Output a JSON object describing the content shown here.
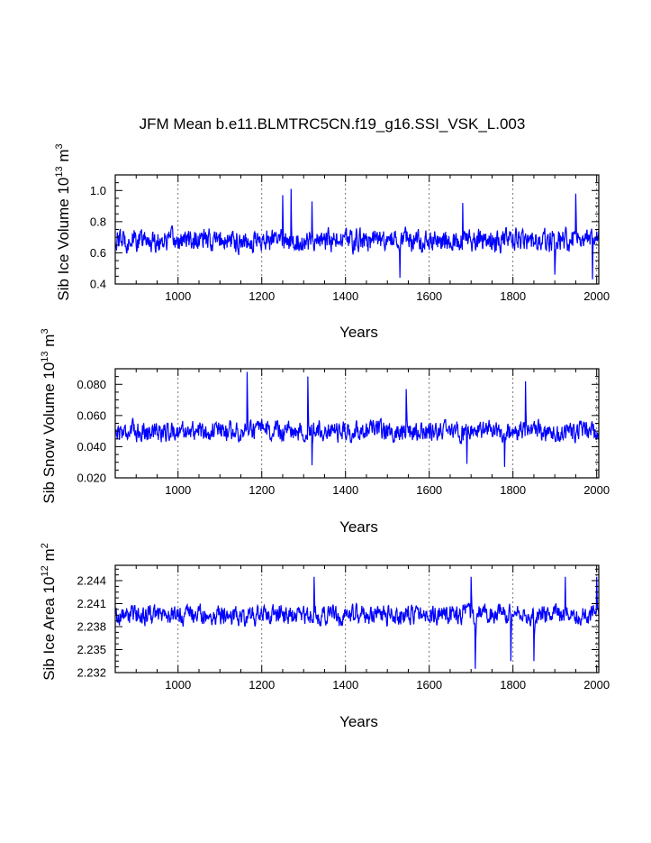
{
  "chart_data": {
    "title": "JFM Mean b.e11.BLMTRC5CN.f19_g16.SSI_VSK_L.003",
    "line_color": "#0000ff",
    "panels": [
      {
        "type": "line",
        "ylabel": "Sib Ice Volume",
        "yunit_base": "10",
        "yunit_exp": "13",
        "yunit_tail": "m",
        "yunit_tail_exp": "3",
        "xlabel": "Years",
        "xlim": [
          850,
          2005
        ],
        "ylim": [
          0.4,
          1.1
        ],
        "xticks": [
          1000,
          1200,
          1400,
          1600,
          1800,
          2000
        ],
        "xtick_labels": [
          "1000",
          "1200",
          "1400",
          "1600",
          "1800",
          "2000"
        ],
        "yticks": [
          0.4,
          0.6,
          0.8,
          1.0
        ],
        "ytick_labels": [
          "0.4",
          "0.6",
          "0.8",
          "1.0"
        ],
        "baseline": 0.68,
        "noise": 0.09,
        "highlights": [
          [
            1250,
            0.97
          ],
          [
            1270,
            1.01
          ],
          [
            1320,
            0.93
          ],
          [
            1680,
            0.92
          ],
          [
            1950,
            0.98
          ]
        ],
        "lows": [
          [
            1530,
            0.44
          ],
          [
            1900,
            0.46
          ],
          [
            1990,
            0.43
          ]
        ]
      },
      {
        "type": "line",
        "ylabel": "Sib Snow Volume",
        "yunit_base": "10",
        "yunit_exp": "13",
        "yunit_tail": "m",
        "yunit_tail_exp": "3",
        "xlabel": "Years",
        "xlim": [
          850,
          2005
        ],
        "ylim": [
          0.02,
          0.09
        ],
        "xticks": [
          1000,
          1200,
          1400,
          1600,
          1800,
          2000
        ],
        "xtick_labels": [
          "1000",
          "1200",
          "1400",
          "1600",
          "1800",
          "2000"
        ],
        "yticks": [
          0.02,
          0.04,
          0.06,
          0.08
        ],
        "ytick_labels": [
          "0.020",
          "0.040",
          "0.060",
          "0.080"
        ],
        "baseline": 0.05,
        "noise": 0.008,
        "highlights": [
          [
            1165,
            0.088
          ],
          [
            1310,
            0.085
          ],
          [
            1545,
            0.077
          ],
          [
            1830,
            0.082
          ]
        ],
        "lows": [
          [
            1320,
            0.028
          ],
          [
            1690,
            0.029
          ],
          [
            1780,
            0.027
          ]
        ]
      },
      {
        "type": "line",
        "ylabel": "Sib Ice Area",
        "yunit_base": "10",
        "yunit_exp": "12",
        "yunit_tail": "m",
        "yunit_tail_exp": "2",
        "xlabel": "Years",
        "xlim": [
          850,
          2005
        ],
        "ylim": [
          2.232,
          2.246
        ],
        "xticks": [
          1000,
          1200,
          1400,
          1600,
          1800,
          2000
        ],
        "xtick_labels": [
          "1000",
          "1200",
          "1400",
          "1600",
          "1800",
          "2000"
        ],
        "yticks": [
          2.232,
          2.235,
          2.238,
          2.241,
          2.244
        ],
        "ytick_labels": [
          "2.232",
          "2.235",
          "2.238",
          "2.241",
          "2.244"
        ],
        "baseline": 2.2395,
        "noise": 0.0016,
        "highlights": [
          [
            1325,
            2.2445
          ],
          [
            1700,
            2.2445
          ],
          [
            1925,
            2.2445
          ],
          [
            2000,
            2.2445
          ]
        ],
        "lows": [
          [
            1710,
            2.2325
          ],
          [
            1795,
            2.2335
          ],
          [
            1850,
            2.2335
          ]
        ]
      }
    ]
  }
}
